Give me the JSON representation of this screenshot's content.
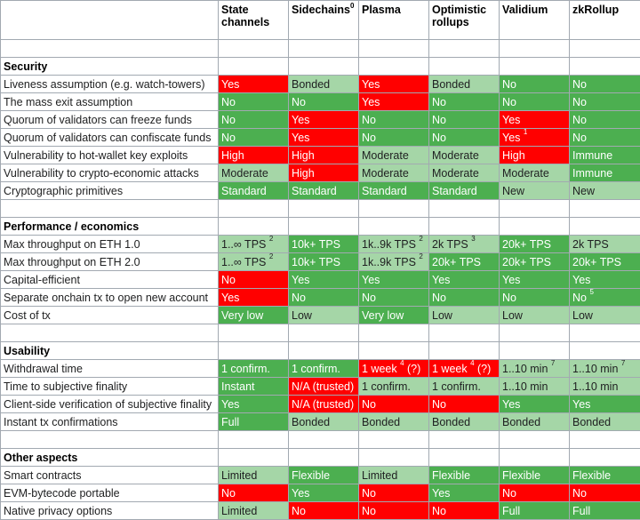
{
  "columns": [
    {
      "label": "State\nchannels"
    },
    {
      "label": "Sidechains",
      "sup": "0"
    },
    {
      "label": "Plasma"
    },
    {
      "label": "Optimistic\nrollups"
    },
    {
      "label": "Validium"
    },
    {
      "label": "zkRollup"
    }
  ],
  "colors": {
    "red": "#ff0000",
    "green": "#4caf50",
    "light_green": "#a5d6a7"
  },
  "rows": [
    {
      "type": "blank"
    },
    {
      "type": "section",
      "label": "Security"
    },
    {
      "type": "row",
      "label": "Liveness assumption (e.g. watch-towers)",
      "cells": [
        {
          "t": "Yes",
          "c": "r"
        },
        {
          "t": "Bonded",
          "c": "l"
        },
        {
          "t": "Yes",
          "c": "r"
        },
        {
          "t": "Bonded",
          "c": "l"
        },
        {
          "t": "No",
          "c": "g"
        },
        {
          "t": "No",
          "c": "g"
        }
      ]
    },
    {
      "type": "row",
      "label": "The mass exit assumption",
      "cells": [
        {
          "t": "No",
          "c": "g"
        },
        {
          "t": "No",
          "c": "g"
        },
        {
          "t": "Yes",
          "c": "r"
        },
        {
          "t": "No",
          "c": "g"
        },
        {
          "t": "No",
          "c": "g"
        },
        {
          "t": "No",
          "c": "g"
        }
      ]
    },
    {
      "type": "row",
      "label": "Quorum of validators can freeze funds",
      "cells": [
        {
          "t": "No",
          "c": "g"
        },
        {
          "t": "Yes",
          "c": "r"
        },
        {
          "t": "No",
          "c": "g"
        },
        {
          "t": "No",
          "c": "g"
        },
        {
          "t": "Yes",
          "c": "r"
        },
        {
          "t": "No",
          "c": "g"
        }
      ]
    },
    {
      "type": "row",
      "label": "Quorum of validators can confiscate funds",
      "cells": [
        {
          "t": "No",
          "c": "g"
        },
        {
          "t": "Yes",
          "c": "r"
        },
        {
          "t": "No",
          "c": "g"
        },
        {
          "t": "No",
          "c": "g"
        },
        {
          "t": "Yes",
          "sup": "1",
          "c": "r"
        },
        {
          "t": "No",
          "c": "g"
        }
      ]
    },
    {
      "type": "row",
      "label": "Vulnerability to hot-wallet key exploits",
      "cells": [
        {
          "t": "High",
          "c": "r"
        },
        {
          "t": "High",
          "c": "r"
        },
        {
          "t": "Moderate",
          "c": "l"
        },
        {
          "t": "Moderate",
          "c": "l"
        },
        {
          "t": "High",
          "c": "r"
        },
        {
          "t": "Immune",
          "c": "g"
        }
      ]
    },
    {
      "type": "row",
      "label": "Vulnerability to crypto-economic attacks",
      "cells": [
        {
          "t": "Moderate",
          "c": "l"
        },
        {
          "t": "High",
          "c": "r"
        },
        {
          "t": "Moderate",
          "c": "l"
        },
        {
          "t": "Moderate",
          "c": "l"
        },
        {
          "t": "Moderate",
          "c": "l"
        },
        {
          "t": "Immune",
          "c": "g"
        }
      ]
    },
    {
      "type": "row",
      "label": "Cryptographic primitives",
      "cells": [
        {
          "t": "Standard",
          "c": "g"
        },
        {
          "t": "Standard",
          "c": "g"
        },
        {
          "t": "Standard",
          "c": "g"
        },
        {
          "t": "Standard",
          "c": "g"
        },
        {
          "t": "New",
          "c": "l"
        },
        {
          "t": "New",
          "c": "l"
        }
      ]
    },
    {
      "type": "blank"
    },
    {
      "type": "section",
      "label": "Performance / economics"
    },
    {
      "type": "row",
      "label": "Max throughput on ETH 1.0",
      "cells": [
        {
          "t": "1..∞ TPS",
          "sup": "2",
          "c": "l"
        },
        {
          "t": "10k+ TPS",
          "c": "g"
        },
        {
          "t": "1k..9k TPS",
          "sup": "2",
          "c": "l"
        },
        {
          "t": "2k TPS",
          "sup": "3",
          "c": "l"
        },
        {
          "t": "20k+ TPS",
          "c": "g"
        },
        {
          "t": "2k TPS",
          "c": "l"
        }
      ]
    },
    {
      "type": "row",
      "label": "Max throughput on ETH 2.0",
      "cells": [
        {
          "t": "1..∞ TPS",
          "sup": "2",
          "c": "l"
        },
        {
          "t": "10k+ TPS",
          "c": "g"
        },
        {
          "t": "1k..9k TPS",
          "sup": "2",
          "c": "l"
        },
        {
          "t": "20k+ TPS",
          "c": "g"
        },
        {
          "t": "20k+ TPS",
          "c": "g"
        },
        {
          "t": "20k+ TPS",
          "c": "g"
        }
      ]
    },
    {
      "type": "row",
      "label": "Capital-efficient",
      "cells": [
        {
          "t": "No",
          "c": "r"
        },
        {
          "t": "Yes",
          "c": "g"
        },
        {
          "t": "Yes",
          "c": "g"
        },
        {
          "t": "Yes",
          "c": "g"
        },
        {
          "t": "Yes",
          "c": "g"
        },
        {
          "t": "Yes",
          "c": "g"
        }
      ]
    },
    {
      "type": "row",
      "label": "Separate onchain tx to open new account",
      "cells": [
        {
          "t": "Yes",
          "c": "r"
        },
        {
          "t": "No",
          "c": "g"
        },
        {
          "t": "No",
          "c": "g"
        },
        {
          "t": "No",
          "c": "g"
        },
        {
          "t": "No",
          "c": "g"
        },
        {
          "t": "No",
          "sup": "5",
          "c": "g"
        }
      ]
    },
    {
      "type": "row",
      "label": "Cost of tx",
      "cells": [
        {
          "t": "Very low",
          "c": "g"
        },
        {
          "t": "Low",
          "c": "l"
        },
        {
          "t": "Very low",
          "c": "g"
        },
        {
          "t": "Low",
          "c": "l"
        },
        {
          "t": "Low",
          "c": "l"
        },
        {
          "t": "Low",
          "c": "l"
        }
      ]
    },
    {
      "type": "blank"
    },
    {
      "type": "section",
      "label": "Usability"
    },
    {
      "type": "row",
      "label": "Withdrawal time",
      "cells": [
        {
          "t": "1 confirm.",
          "c": "g"
        },
        {
          "t": "1 confirm.",
          "c": "g"
        },
        {
          "t": "1 week",
          "sup": "4",
          "tail": " (?)",
          "c": "r"
        },
        {
          "t": "1 week",
          "sup": "4",
          "tail": " (?)",
          "c": "r"
        },
        {
          "t": "1..10 min",
          "sup": "7",
          "c": "l"
        },
        {
          "t": "1..10 min",
          "sup": "7",
          "c": "l"
        }
      ]
    },
    {
      "type": "row",
      "label": "Time to subjective finality",
      "cells": [
        {
          "t": "Instant",
          "c": "g"
        },
        {
          "t": "N/A (trusted)",
          "c": "r"
        },
        {
          "t": "1 confirm.",
          "c": "l"
        },
        {
          "t": "1 confirm.",
          "c": "l"
        },
        {
          "t": "1..10 min",
          "c": "l"
        },
        {
          "t": "1..10 min",
          "c": "l"
        }
      ]
    },
    {
      "type": "row",
      "label": "Client-side verification of subjective finality",
      "cells": [
        {
          "t": "Yes",
          "c": "g"
        },
        {
          "t": "N/A (trusted)",
          "c": "r"
        },
        {
          "t": "No",
          "c": "r"
        },
        {
          "t": "No",
          "c": "r"
        },
        {
          "t": "Yes",
          "c": "g"
        },
        {
          "t": "Yes",
          "c": "g"
        }
      ]
    },
    {
      "type": "row",
      "label": "Instant tx confirmations",
      "cells": [
        {
          "t": "Full",
          "c": "g"
        },
        {
          "t": "Bonded",
          "c": "l"
        },
        {
          "t": "Bonded",
          "c": "l"
        },
        {
          "t": "Bonded",
          "c": "l"
        },
        {
          "t": "Bonded",
          "c": "l"
        },
        {
          "t": "Bonded",
          "c": "l"
        }
      ]
    },
    {
      "type": "blank"
    },
    {
      "type": "section",
      "label": "Other aspects"
    },
    {
      "type": "row",
      "label": "Smart contracts",
      "cells": [
        {
          "t": "Limited",
          "c": "l"
        },
        {
          "t": "Flexible",
          "c": "g"
        },
        {
          "t": "Limited",
          "c": "l"
        },
        {
          "t": "Flexible",
          "c": "g"
        },
        {
          "t": "Flexible",
          "c": "g"
        },
        {
          "t": "Flexible",
          "c": "g"
        }
      ]
    },
    {
      "type": "row",
      "label": "EVM-bytecode portable",
      "cells": [
        {
          "t": "No",
          "c": "r"
        },
        {
          "t": "Yes",
          "c": "g"
        },
        {
          "t": "No",
          "c": "r"
        },
        {
          "t": "Yes",
          "c": "g"
        },
        {
          "t": "No",
          "c": "r"
        },
        {
          "t": "No",
          "c": "r"
        }
      ]
    },
    {
      "type": "row",
      "label": "Native privacy options",
      "cells": [
        {
          "t": "Limited",
          "c": "l"
        },
        {
          "t": "No",
          "c": "r"
        },
        {
          "t": "No",
          "c": "r"
        },
        {
          "t": "No",
          "c": "r"
        },
        {
          "t": "Full",
          "c": "g"
        },
        {
          "t": "Full",
          "c": "g"
        }
      ]
    }
  ]
}
